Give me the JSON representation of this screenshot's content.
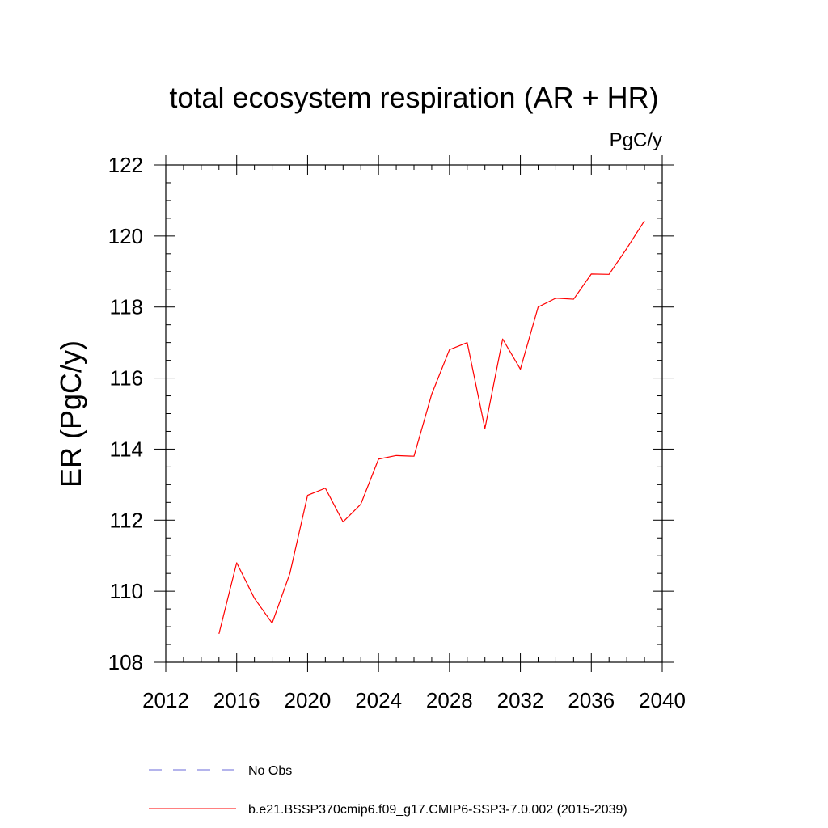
{
  "chart_data": {
    "type": "line",
    "title": "total ecosystem respiration (AR + HR)",
    "units_label": "PgC/y",
    "ylabel": "ER  (PgC/y)",
    "xlabel": "",
    "xlim": [
      2012,
      2040
    ],
    "ylim": [
      108,
      122
    ],
    "x_ticks": [
      2012,
      2016,
      2020,
      2024,
      2028,
      2032,
      2036,
      2040
    ],
    "y_ticks": [
      108,
      110,
      112,
      114,
      116,
      118,
      120,
      122
    ],
    "series": [
      {
        "name": "b.e21.BSSP370cmip6.f09_g17.CMIP6-SSP3-7.0.002 (2015-2039)",
        "color": "#ff0000",
        "style": "solid",
        "x": [
          2015,
          2016,
          2017,
          2018,
          2019,
          2020,
          2021,
          2022,
          2023,
          2024,
          2025,
          2026,
          2027,
          2028,
          2029,
          2030,
          2031,
          2032,
          2033,
          2034,
          2035,
          2036,
          2037,
          2038,
          2039
        ],
        "y": [
          108.8,
          110.8,
          109.8,
          109.1,
          110.5,
          112.7,
          112.9,
          111.95,
          112.45,
          113.72,
          113.82,
          113.8,
          115.55,
          116.8,
          117.0,
          114.58,
          117.1,
          116.25,
          118.0,
          118.25,
          118.22,
          118.93,
          118.92,
          119.65,
          120.43
        ]
      }
    ],
    "legend": [
      {
        "label": "No Obs",
        "color": "#6a6ad8",
        "style": "dashed"
      },
      {
        "label": "b.e21.BSSP370cmip6.f09_g17.CMIP6-SSP3-7.0.002 (2015-2039)",
        "color": "#ff0000",
        "style": "solid"
      }
    ],
    "legend_position": "bottom"
  }
}
